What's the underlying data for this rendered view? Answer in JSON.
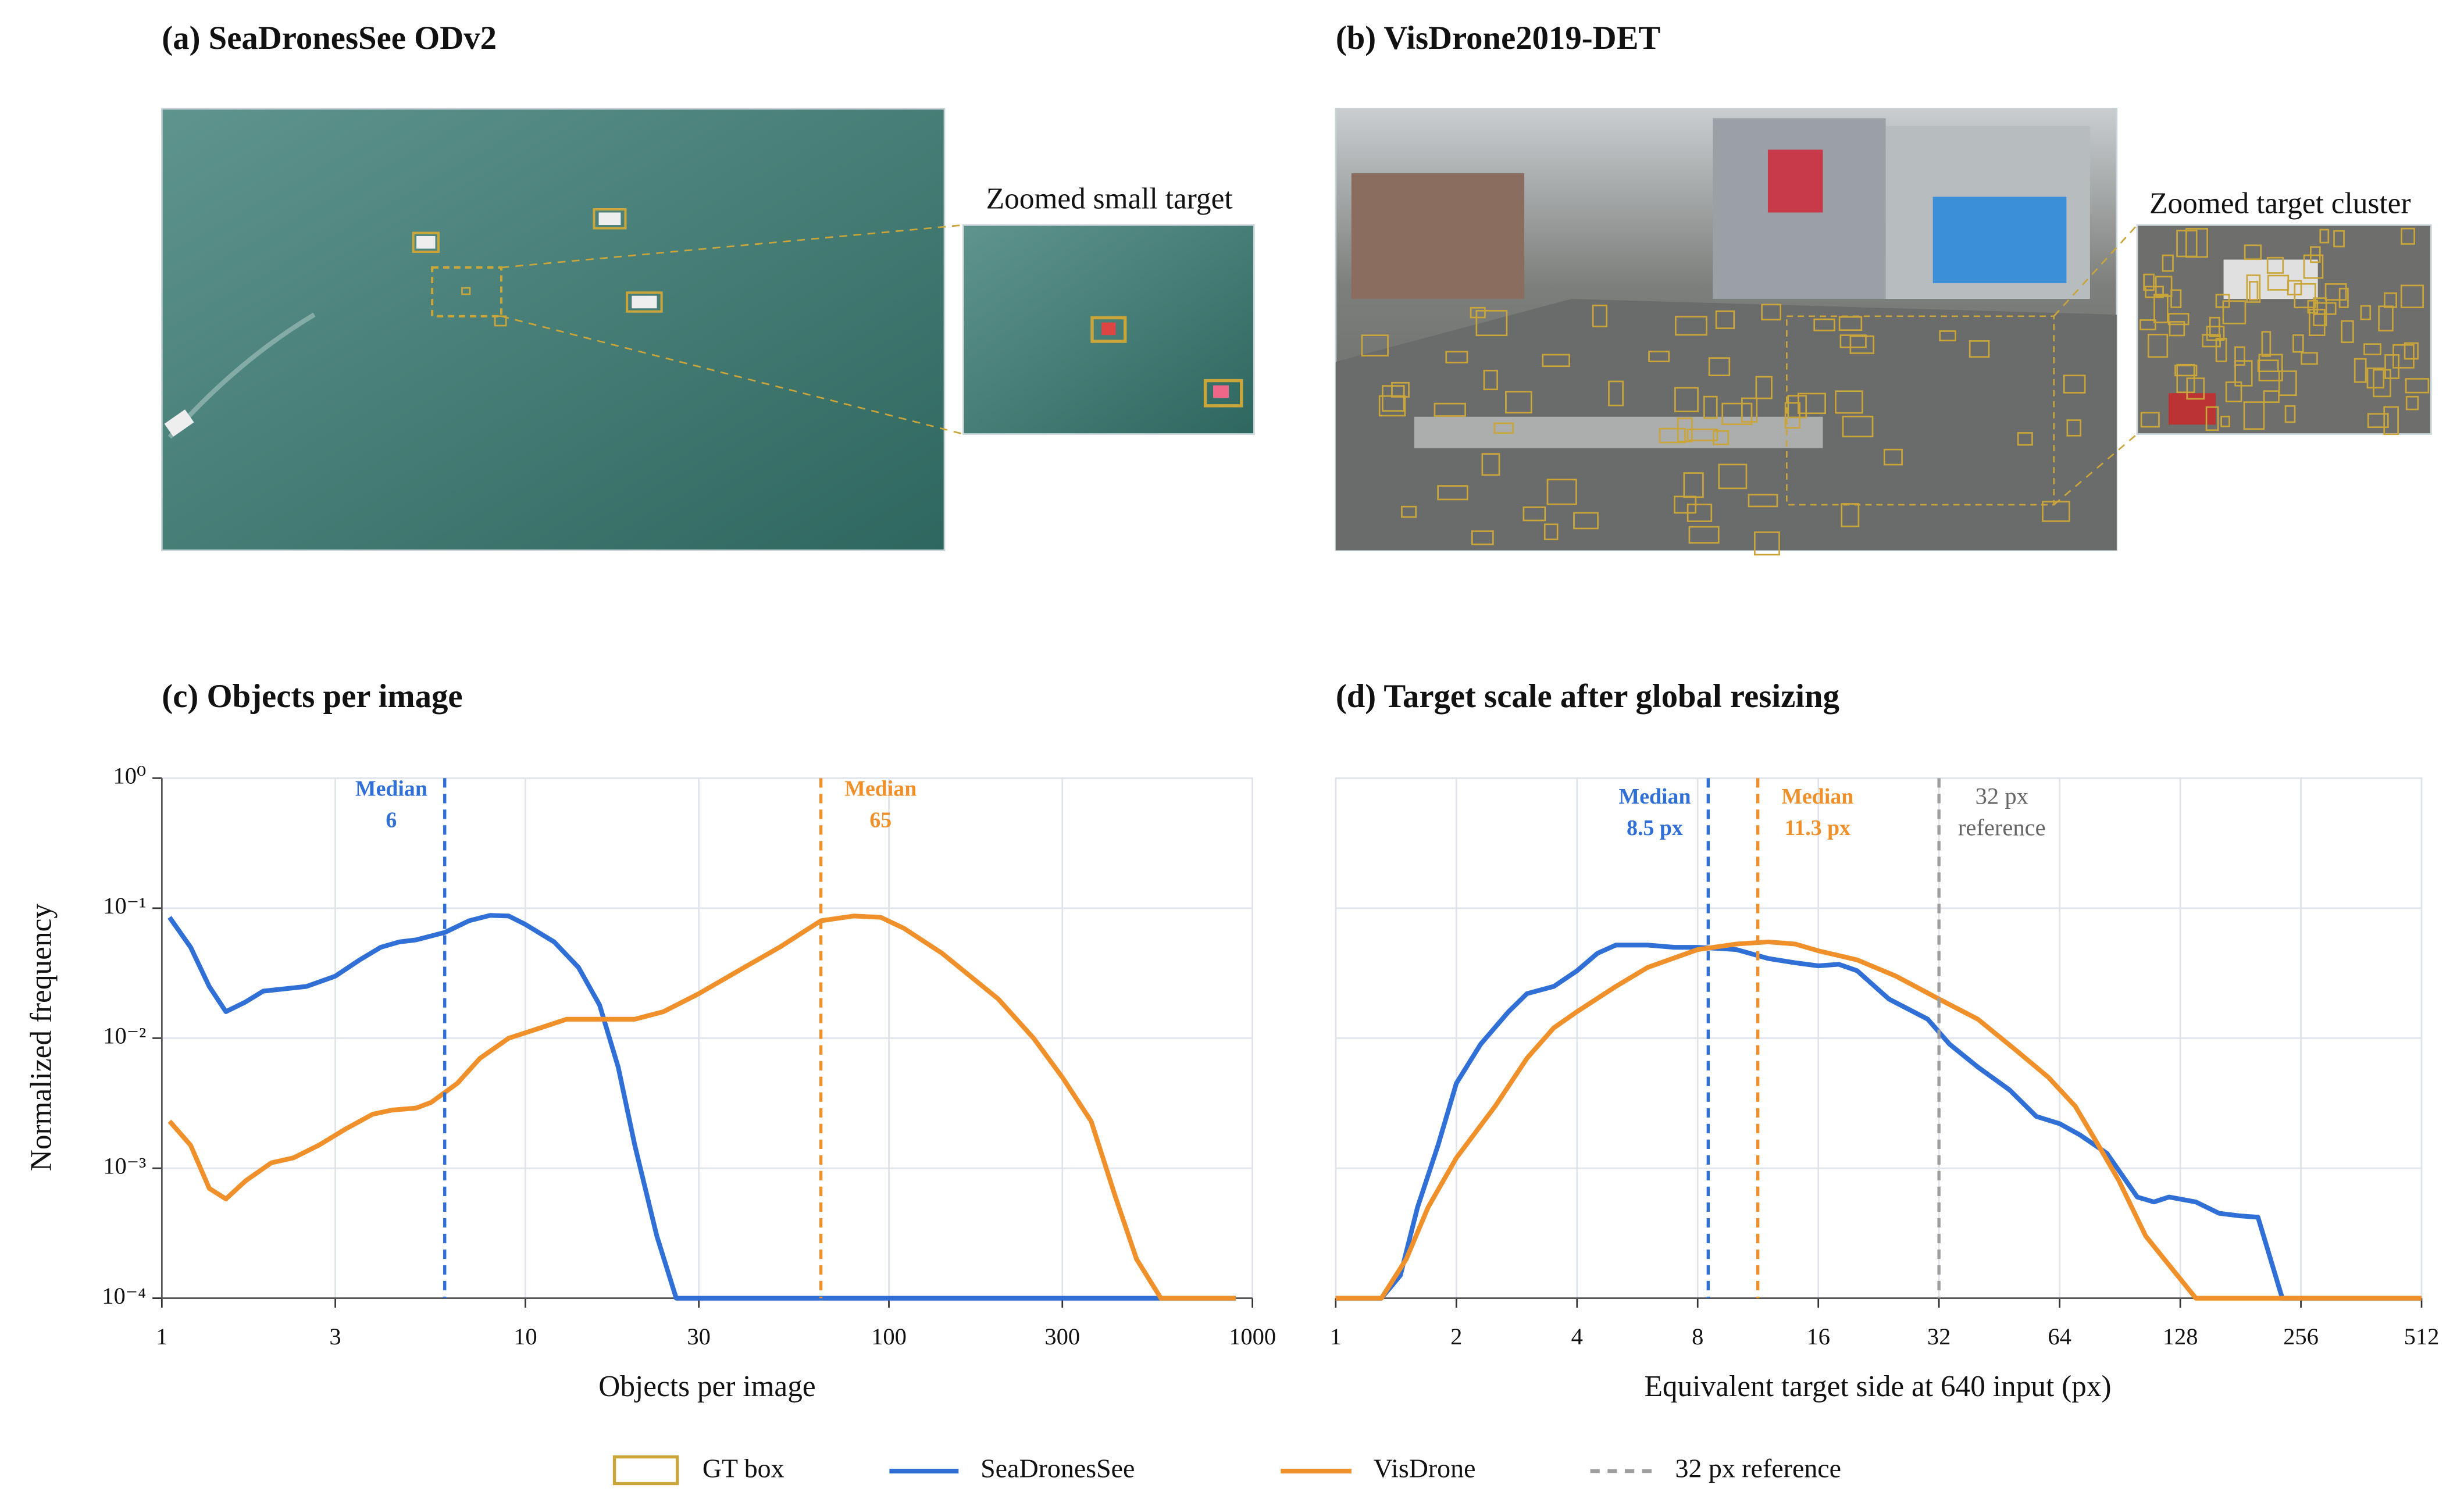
{
  "panels": [
    {
      "title": "(a) SeaDronesSee ODv2",
      "zoom_label": "Zoomed small target"
    },
    {
      "title": "(b) VisDrone2019-DET",
      "zoom_label": "Zoomed target cluster"
    }
  ],
  "legend": {
    "gt_box": "GT box",
    "gt_color": "#c9a53a"
  },
  "chart_data": [
    {
      "type": "line",
      "title": "(c) Objects per image",
      "x_label": "Objects per image",
      "y_label": "Normalized frequency",
      "log_x": true,
      "log_y": true,
      "grid": true,
      "xlim": [
        1,
        1000
      ],
      "ylim": [
        0.0001,
        1
      ],
      "xticks": [
        1,
        3,
        10,
        30,
        100,
        300,
        1000
      ],
      "yticks": [
        {
          "value": 0.0001,
          "label": "10⁻⁴"
        },
        {
          "value": 0.001,
          "label": "10⁻³"
        },
        {
          "value": 0.01,
          "label": "10⁻²"
        },
        {
          "value": 0.1,
          "label": "10⁻¹"
        },
        {
          "value": 1,
          "label": "10⁰"
        }
      ],
      "series": [
        {
          "name": "SeaDronesSee",
          "color": "#2f6fd6",
          "x": [
            1.05,
            1.2,
            1.35,
            1.5,
            1.7,
            1.9,
            2.5,
            3,
            3.5,
            4,
            4.5,
            5,
            6,
            7,
            8,
            9,
            10,
            12,
            14,
            16,
            18,
            20,
            23,
            26,
            30,
            100,
            300,
            600,
            900
          ],
          "values": [
            0.085,
            0.05,
            0.025,
            0.016,
            0.019,
            0.023,
            0.025,
            0.03,
            0.04,
            0.05,
            0.055,
            0.057,
            0.065,
            0.08,
            0.088,
            0.087,
            0.075,
            0.055,
            0.035,
            0.018,
            0.006,
            0.0015,
            0.0003,
            0.0001,
            0.0001,
            0.0001,
            0.0001,
            0.0001,
            0.0001
          ]
        },
        {
          "name": "VisDrone",
          "color": "#f0902a",
          "x": [
            1.05,
            1.2,
            1.35,
            1.5,
            1.7,
            2,
            2.3,
            2.7,
            3.2,
            3.8,
            4.3,
            5,
            5.5,
            6.5,
            7.5,
            9,
            11,
            13,
            16,
            20,
            24,
            30,
            40,
            50,
            65,
            80,
            95,
            110,
            140,
            200,
            250,
            300,
            360,
            420,
            480,
            560,
            700,
            900
          ],
          "values": [
            0.0023,
            0.0015,
            0.0007,
            0.00058,
            0.0008,
            0.0011,
            0.0012,
            0.0015,
            0.002,
            0.0026,
            0.0028,
            0.0029,
            0.0032,
            0.0045,
            0.007,
            0.01,
            0.012,
            0.014,
            0.014,
            0.014,
            0.016,
            0.022,
            0.035,
            0.05,
            0.08,
            0.087,
            0.085,
            0.07,
            0.045,
            0.02,
            0.01,
            0.005,
            0.0023,
            0.0006,
            0.0002,
            0.0001,
            0.0001,
            0.0001
          ]
        }
      ],
      "medians": [
        {
          "series": 0,
          "label": "Median",
          "value": 6
        },
        {
          "series": 1,
          "label": "Median",
          "value": 65
        }
      ]
    },
    {
      "type": "line",
      "title": "(d) Target scale after global resizing",
      "x_label": "Equivalent target side at 640 input (px)",
      "log_x": true,
      "log_y": true,
      "grid": true,
      "xlim": [
        1,
        512
      ],
      "ylim": [
        0.0001,
        1
      ],
      "xticks": [
        1,
        2,
        4,
        8,
        16,
        32,
        64,
        128,
        256,
        512
      ],
      "series": [
        {
          "name": "SeaDronesSee",
          "color": "#2f6fd6",
          "x": [
            1,
            1.3,
            1.45,
            1.6,
            1.8,
            2,
            2.3,
            2.7,
            3,
            3.5,
            4,
            4.5,
            5,
            6,
            7,
            8,
            9,
            10,
            12,
            14,
            16,
            18,
            20,
            24,
            30,
            34,
            40,
            48,
            56,
            64,
            72,
            84,
            100,
            110,
            120,
            140,
            160,
            180,
            200,
            230,
            512
          ],
          "values": [
            0.0001,
            0.0001,
            0.00015,
            0.0005,
            0.0015,
            0.0045,
            0.009,
            0.016,
            0.022,
            0.025,
            0.033,
            0.045,
            0.052,
            0.052,
            0.05,
            0.05,
            0.049,
            0.048,
            0.041,
            0.038,
            0.036,
            0.037,
            0.033,
            0.02,
            0.014,
            0.009,
            0.006,
            0.004,
            0.0025,
            0.0022,
            0.0018,
            0.0013,
            0.0006,
            0.00055,
            0.0006,
            0.00055,
            0.00045,
            0.00043,
            0.00042,
            0.0001,
            0.0001
          ]
        },
        {
          "name": "VisDrone",
          "color": "#f0902a",
          "x": [
            1,
            1.3,
            1.5,
            1.7,
            2,
            2.5,
            3,
            3.5,
            4,
            5,
            6,
            8,
            10,
            12,
            14,
            16,
            20,
            25,
            32,
            40,
            50,
            60,
            70,
            80,
            90,
            105,
            120,
            140,
            512
          ],
          "values": [
            0.0001,
            0.0001,
            0.0002,
            0.0005,
            0.0012,
            0.003,
            0.007,
            0.012,
            0.016,
            0.025,
            0.035,
            0.048,
            0.053,
            0.055,
            0.053,
            0.047,
            0.04,
            0.03,
            0.02,
            0.014,
            0.008,
            0.005,
            0.003,
            0.0015,
            0.0008,
            0.0003,
            0.00018,
            0.0001,
            0.0001
          ]
        }
      ],
      "medians": [
        {
          "series": 0,
          "label": "Median",
          "value": 8.5,
          "value_label": "8.5 px"
        },
        {
          "series": 1,
          "label": "Median",
          "value": 11.3,
          "value_label": "11.3 px"
        }
      ],
      "reference": {
        "value": 32,
        "label_lines": [
          "32 px",
          "reference"
        ],
        "legend_label": "32 px reference",
        "color": "#9e9e9e"
      }
    }
  ]
}
